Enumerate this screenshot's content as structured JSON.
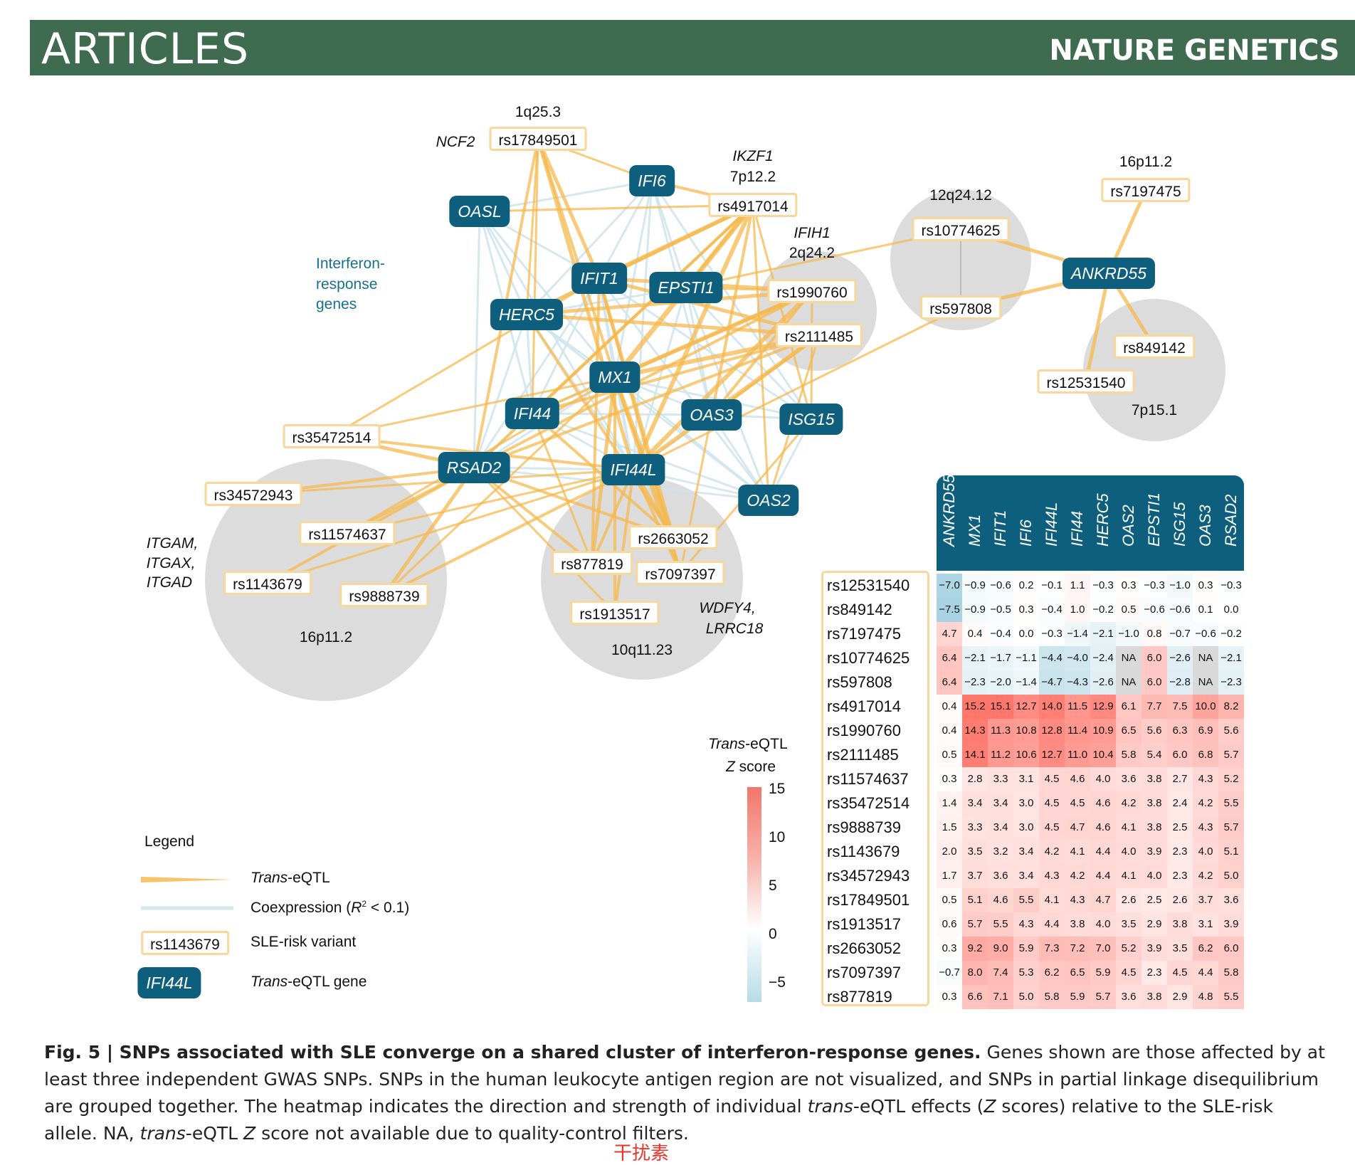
{
  "header": {
    "left": "ARTICLES",
    "right": "NATURE GENETICS"
  },
  "loci": [
    {
      "id": "l_1q",
      "text": "1q25.3"
    },
    {
      "id": "l_7p12",
      "text": "7p12.2"
    },
    {
      "id": "l_12q",
      "text": "12q24.12"
    },
    {
      "id": "l_16p_top",
      "text": "16p11.2"
    },
    {
      "id": "l_2q",
      "text": "2q24.2"
    },
    {
      "id": "l_7p15",
      "text": "7p15.1"
    },
    {
      "id": "l_16p_bot",
      "text": "16p11.2"
    },
    {
      "id": "l_10q",
      "text": "10q11.23"
    }
  ],
  "locus_genes": [
    {
      "id": "g_ncf2",
      "text": "NCF2"
    },
    {
      "id": "g_ikzf1",
      "text": "IKZF1"
    },
    {
      "id": "g_ifih1",
      "text": "IFIH1"
    },
    {
      "id": "g_itgam1",
      "text": "ITGAM,"
    },
    {
      "id": "g_itgam2",
      "text": "ITGAX,"
    },
    {
      "id": "g_itgam3",
      "text": "ITGAD"
    },
    {
      "id": "g_wdfy1",
      "text": "WDFY4,"
    },
    {
      "id": "g_wdfy2",
      "text": "LRRC18"
    }
  ],
  "interferon_label": [
    "Interferon-",
    "response",
    "genes"
  ],
  "snps": [
    "rs17849501",
    "rs4917014",
    "rs10774625",
    "rs7197475",
    "rs1990760",
    "rs2111485",
    "rs597808",
    "rs849142",
    "rs12531540",
    "rs35472514",
    "rs34572943",
    "rs11574637",
    "rs1143679",
    "rs9888739",
    "rs2663052",
    "rs877819",
    "rs7097397",
    "rs1913517"
  ],
  "genes": [
    "IFI6",
    "OASL",
    "IFIT1",
    "EPSTI1",
    "HERC5",
    "MX1",
    "IFI44",
    "OAS3",
    "ISG15",
    "RSAD2",
    "IFI44L",
    "OAS2",
    "ANKRD55"
  ],
  "legend": {
    "title": "Legend",
    "trans_eqtl_italic": "Trans",
    "trans_eqtl_rest": "-eQTL",
    "coexp": "Coexpression (",
    "coexp_r": "R",
    "coexp_sup": "2",
    "coexp_end": " < 0.1)",
    "snp_example": "rs1143679",
    "snp_desc": "SLE-risk variant",
    "gene_example": "IFI44L",
    "gene_desc_italic": "Trans",
    "gene_desc_rest": "-eQTL gene"
  },
  "colorbar": {
    "title_italic": "Trans",
    "title_rest": "-eQTL",
    "title2_italic": "Z",
    "title2_rest": " score",
    "ticks": [
      "15",
      "10",
      "5",
      "0",
      "−5"
    ]
  },
  "heatmap": {
    "columns": [
      "ANKRD55",
      "MX1",
      "IFIT1",
      "IFI6",
      "IFI44L",
      "IFI44",
      "HERC5",
      "OAS2",
      "EPSTI1",
      "ISG15",
      "OAS3",
      "RSAD2"
    ],
    "rows": [
      "rs12531540",
      "rs849142",
      "rs7197475",
      "rs10774625",
      "rs597808",
      "rs4917014",
      "rs1990760",
      "rs2111485",
      "rs11574637",
      "rs35472514",
      "rs9888739",
      "rs1143679",
      "rs34572943",
      "rs17849501",
      "rs1913517",
      "rs2663052",
      "rs7097397",
      "rs877819"
    ],
    "values": [
      [
        "−7.0",
        "−0.9",
        "−0.6",
        "0.2",
        "−0.1",
        "1.1",
        "−0.3",
        "0.3",
        "−0.3",
        "−1.0",
        "0.3",
        "−0.3"
      ],
      [
        "−7.5",
        "−0.9",
        "−0.5",
        "0.3",
        "−0.4",
        "1.0",
        "−0.2",
        "0.5",
        "−0.6",
        "−0.6",
        "0.1",
        "0.0"
      ],
      [
        "4.7",
        "0.4",
        "−0.4",
        "0.0",
        "−0.3",
        "−1.4",
        "−2.1",
        "−1.0",
        "0.8",
        "−0.7",
        "−0.6",
        "−0.2"
      ],
      [
        "6.4",
        "−2.1",
        "−1.7",
        "−1.1",
        "−4.4",
        "−4.0",
        "−2.4",
        "NA",
        "6.0",
        "−2.6",
        "NA",
        "−2.1"
      ],
      [
        "6.4",
        "−2.3",
        "−2.0",
        "−1.4",
        "−4.7",
        "−4.3",
        "−2.6",
        "NA",
        "6.0",
        "−2.8",
        "NA",
        "−2.3"
      ],
      [
        "0.4",
        "15.2",
        "15.1",
        "12.7",
        "14.0",
        "11.5",
        "12.9",
        "6.1",
        "7.7",
        "7.5",
        "10.0",
        "8.2"
      ],
      [
        "0.4",
        "14.3",
        "11.3",
        "10.8",
        "12.8",
        "11.4",
        "10.9",
        "6.5",
        "5.6",
        "6.3",
        "6.9",
        "5.6"
      ],
      [
        "0.5",
        "14.1",
        "11.2",
        "10.6",
        "12.7",
        "11.0",
        "10.4",
        "5.8",
        "5.4",
        "6.0",
        "6.8",
        "5.7"
      ],
      [
        "0.3",
        "2.8",
        "3.3",
        "3.1",
        "4.5",
        "4.6",
        "4.0",
        "3.6",
        "3.8",
        "2.7",
        "4.3",
        "5.2"
      ],
      [
        "1.4",
        "3.4",
        "3.4",
        "3.0",
        "4.5",
        "4.5",
        "4.6",
        "4.2",
        "3.8",
        "2.4",
        "4.2",
        "5.5"
      ],
      [
        "1.5",
        "3.3",
        "3.4",
        "3.0",
        "4.5",
        "4.7",
        "4.6",
        "4.1",
        "3.8",
        "2.5",
        "4.3",
        "5.7"
      ],
      [
        "2.0",
        "3.5",
        "3.2",
        "3.4",
        "4.2",
        "4.1",
        "4.4",
        "4.0",
        "3.9",
        "2.3",
        "4.0",
        "5.1"
      ],
      [
        "1.7",
        "3.7",
        "3.6",
        "3.4",
        "4.3",
        "4.2",
        "4.4",
        "4.1",
        "4.0",
        "2.3",
        "4.2",
        "5.0"
      ],
      [
        "0.5",
        "5.1",
        "4.6",
        "5.5",
        "4.1",
        "4.3",
        "4.7",
        "2.6",
        "2.5",
        "2.6",
        "3.7",
        "3.6"
      ],
      [
        "0.6",
        "5.7",
        "5.5",
        "4.3",
        "4.4",
        "3.8",
        "4.0",
        "3.5",
        "2.9",
        "3.8",
        "3.1",
        "3.9"
      ],
      [
        "0.3",
        "9.2",
        "9.0",
        "5.9",
        "7.3",
        "7.2",
        "7.0",
        "5.2",
        "3.9",
        "3.5",
        "6.2",
        "6.0"
      ],
      [
        "−0.7",
        "8.0",
        "7.4",
        "5.3",
        "6.2",
        "6.5",
        "5.9",
        "4.5",
        "2.3",
        "4.5",
        "4.4",
        "5.8"
      ],
      [
        "0.3",
        "6.6",
        "7.1",
        "5.0",
        "5.8",
        "5.9",
        "5.7",
        "3.6",
        "3.8",
        "2.9",
        "4.8",
        "5.5"
      ]
    ]
  },
  "caption": {
    "bold": "Fig. 5 | SNPs associated with SLE converge on a shared cluster of interferon-response genes.",
    "text1": " Genes shown are those affected by at least three independent GWAS SNPs. SNPs in the human leukocyte antigen region are not visualized, and SNPs in partial linkage disequilibrium are grouped together. The heatmap indicates the direction and strength of individual ",
    "it1": "trans",
    "text2": "-eQTL effects (",
    "it2": "Z",
    "text3": " scores) relative to the SLE-risk allele. NA, ",
    "it3": "trans",
    "text4": "-eQTL ",
    "it4": "Z",
    "text5": " score not available due to quality-control filters."
  },
  "watermark": "干扰素"
}
